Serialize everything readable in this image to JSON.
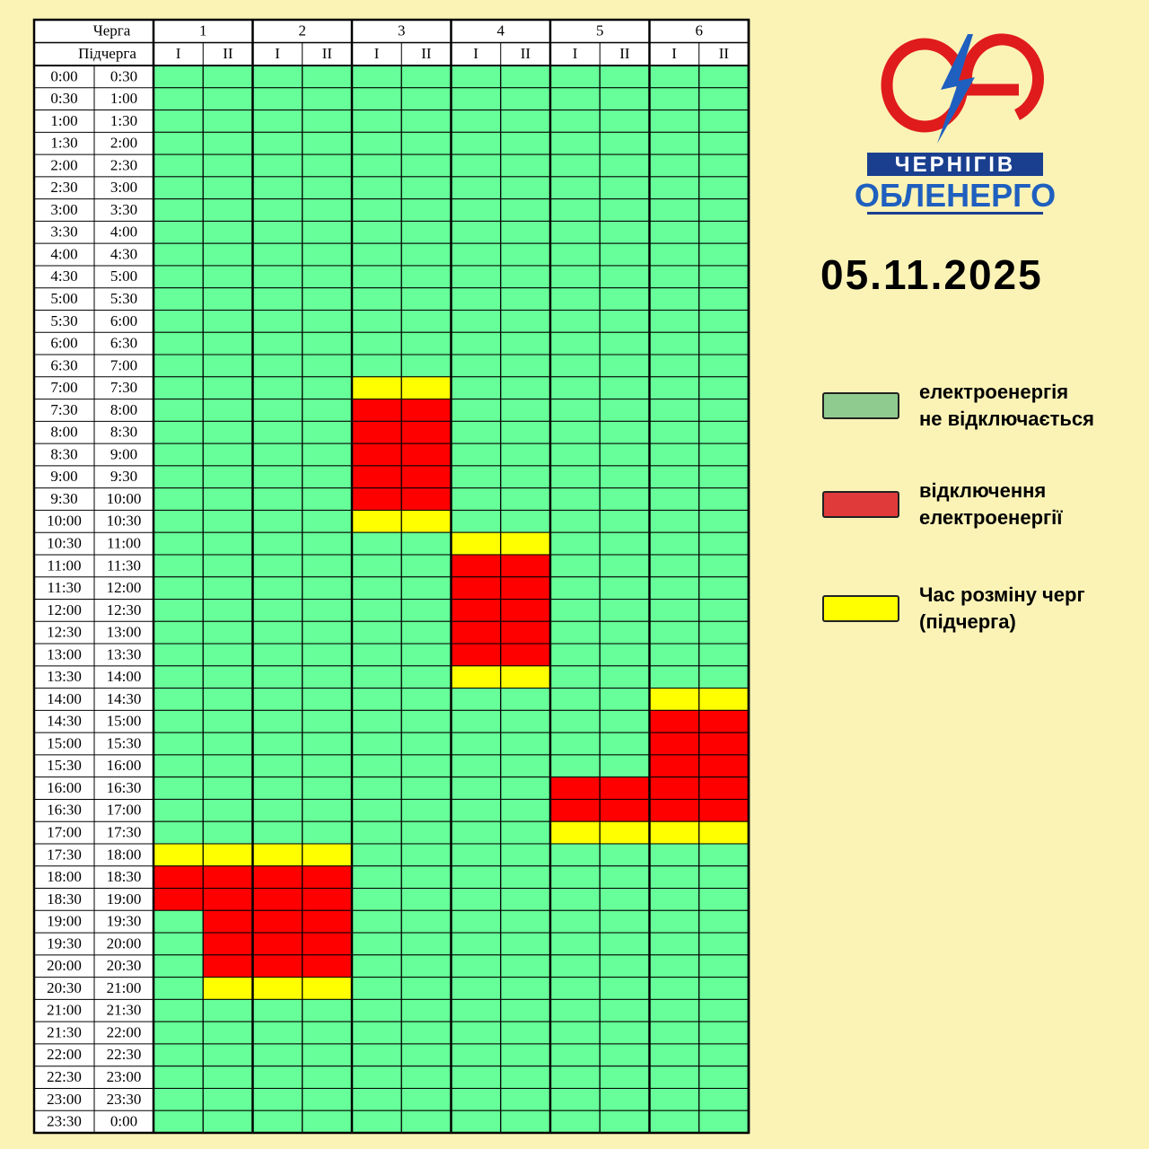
{
  "header": {
    "queue_label": "Черга",
    "subqueue_label": "Підчерга",
    "queues": [
      "1",
      "2",
      "3",
      "4",
      "5",
      "6"
    ],
    "subqueues": [
      "I",
      "II",
      "I",
      "II",
      "I",
      "II",
      "I",
      "II",
      "I",
      "II",
      "I",
      "II"
    ]
  },
  "rows": [
    {
      "from": "0:00",
      "to": "0:30",
      "cells": [
        0,
        0,
        0,
        0,
        0,
        0,
        0,
        0,
        0,
        0,
        0,
        0
      ]
    },
    {
      "from": "0:30",
      "to": "1:00",
      "cells": [
        0,
        0,
        0,
        0,
        0,
        0,
        0,
        0,
        0,
        0,
        0,
        0
      ]
    },
    {
      "from": "1:00",
      "to": "1:30",
      "cells": [
        0,
        0,
        0,
        0,
        0,
        0,
        0,
        0,
        0,
        0,
        0,
        0
      ]
    },
    {
      "from": "1:30",
      "to": "2:00",
      "cells": [
        0,
        0,
        0,
        0,
        0,
        0,
        0,
        0,
        0,
        0,
        0,
        0
      ]
    },
    {
      "from": "2:00",
      "to": "2:30",
      "cells": [
        0,
        0,
        0,
        0,
        0,
        0,
        0,
        0,
        0,
        0,
        0,
        0
      ]
    },
    {
      "from": "2:30",
      "to": "3:00",
      "cells": [
        0,
        0,
        0,
        0,
        0,
        0,
        0,
        0,
        0,
        0,
        0,
        0
      ]
    },
    {
      "from": "3:00",
      "to": "3:30",
      "cells": [
        0,
        0,
        0,
        0,
        0,
        0,
        0,
        0,
        0,
        0,
        0,
        0
      ]
    },
    {
      "from": "3:30",
      "to": "4:00",
      "cells": [
        0,
        0,
        0,
        0,
        0,
        0,
        0,
        0,
        0,
        0,
        0,
        0
      ]
    },
    {
      "from": "4:00",
      "to": "4:30",
      "cells": [
        0,
        0,
        0,
        0,
        0,
        0,
        0,
        0,
        0,
        0,
        0,
        0
      ]
    },
    {
      "from": "4:30",
      "to": "5:00",
      "cells": [
        0,
        0,
        0,
        0,
        0,
        0,
        0,
        0,
        0,
        0,
        0,
        0
      ]
    },
    {
      "from": "5:00",
      "to": "5:30",
      "cells": [
        0,
        0,
        0,
        0,
        0,
        0,
        0,
        0,
        0,
        0,
        0,
        0
      ]
    },
    {
      "from": "5:30",
      "to": "6:00",
      "cells": [
        0,
        0,
        0,
        0,
        0,
        0,
        0,
        0,
        0,
        0,
        0,
        0
      ]
    },
    {
      "from": "6:00",
      "to": "6:30",
      "cells": [
        0,
        0,
        0,
        0,
        0,
        0,
        0,
        0,
        0,
        0,
        0,
        0
      ]
    },
    {
      "from": "6:30",
      "to": "7:00",
      "cells": [
        0,
        0,
        0,
        0,
        0,
        0,
        0,
        0,
        0,
        0,
        0,
        0
      ]
    },
    {
      "from": "7:00",
      "to": "7:30",
      "cells": [
        0,
        0,
        0,
        0,
        2,
        2,
        0,
        0,
        0,
        0,
        0,
        0
      ]
    },
    {
      "from": "7:30",
      "to": "8:00",
      "cells": [
        0,
        0,
        0,
        0,
        1,
        1,
        0,
        0,
        0,
        0,
        0,
        0
      ]
    },
    {
      "from": "8:00",
      "to": "8:30",
      "cells": [
        0,
        0,
        0,
        0,
        1,
        1,
        0,
        0,
        0,
        0,
        0,
        0
      ]
    },
    {
      "from": "8:30",
      "to": "9:00",
      "cells": [
        0,
        0,
        0,
        0,
        1,
        1,
        0,
        0,
        0,
        0,
        0,
        0
      ]
    },
    {
      "from": "9:00",
      "to": "9:30",
      "cells": [
        0,
        0,
        0,
        0,
        1,
        1,
        0,
        0,
        0,
        0,
        0,
        0
      ]
    },
    {
      "from": "9:30",
      "to": "10:00",
      "cells": [
        0,
        0,
        0,
        0,
        1,
        1,
        0,
        0,
        0,
        0,
        0,
        0
      ]
    },
    {
      "from": "10:00",
      "to": "10:30",
      "cells": [
        0,
        0,
        0,
        0,
        2,
        2,
        0,
        0,
        0,
        0,
        0,
        0
      ]
    },
    {
      "from": "10:30",
      "to": "11:00",
      "cells": [
        0,
        0,
        0,
        0,
        0,
        0,
        2,
        2,
        0,
        0,
        0,
        0
      ]
    },
    {
      "from": "11:00",
      "to": "11:30",
      "cells": [
        0,
        0,
        0,
        0,
        0,
        0,
        1,
        1,
        0,
        0,
        0,
        0
      ]
    },
    {
      "from": "11:30",
      "to": "12:00",
      "cells": [
        0,
        0,
        0,
        0,
        0,
        0,
        1,
        1,
        0,
        0,
        0,
        0
      ]
    },
    {
      "from": "12:00",
      "to": "12:30",
      "cells": [
        0,
        0,
        0,
        0,
        0,
        0,
        1,
        1,
        0,
        0,
        0,
        0
      ]
    },
    {
      "from": "12:30",
      "to": "13:00",
      "cells": [
        0,
        0,
        0,
        0,
        0,
        0,
        1,
        1,
        0,
        0,
        0,
        0
      ]
    },
    {
      "from": "13:00",
      "to": "13:30",
      "cells": [
        0,
        0,
        0,
        0,
        0,
        0,
        1,
        1,
        0,
        0,
        0,
        0
      ]
    },
    {
      "from": "13:30",
      "to": "14:00",
      "cells": [
        0,
        0,
        0,
        0,
        0,
        0,
        2,
        2,
        0,
        0,
        0,
        0
      ]
    },
    {
      "from": "14:00",
      "to": "14:30",
      "cells": [
        0,
        0,
        0,
        0,
        0,
        0,
        0,
        0,
        0,
        0,
        2,
        2
      ]
    },
    {
      "from": "14:30",
      "to": "15:00",
      "cells": [
        0,
        0,
        0,
        0,
        0,
        0,
        0,
        0,
        0,
        0,
        1,
        1
      ]
    },
    {
      "from": "15:00",
      "to": "15:30",
      "cells": [
        0,
        0,
        0,
        0,
        0,
        0,
        0,
        0,
        0,
        0,
        1,
        1
      ]
    },
    {
      "from": "15:30",
      "to": "16:00",
      "cells": [
        0,
        0,
        0,
        0,
        0,
        0,
        0,
        0,
        0,
        0,
        1,
        1
      ]
    },
    {
      "from": "16:00",
      "to": "16:30",
      "cells": [
        0,
        0,
        0,
        0,
        0,
        0,
        0,
        0,
        1,
        1,
        1,
        1
      ]
    },
    {
      "from": "16:30",
      "to": "17:00",
      "cells": [
        0,
        0,
        0,
        0,
        0,
        0,
        0,
        0,
        1,
        1,
        1,
        1
      ]
    },
    {
      "from": "17:00",
      "to": "17:30",
      "cells": [
        0,
        0,
        0,
        0,
        0,
        0,
        0,
        0,
        2,
        2,
        2,
        2
      ]
    },
    {
      "from": "17:30",
      "to": "18:00",
      "cells": [
        2,
        2,
        2,
        2,
        0,
        0,
        0,
        0,
        0,
        0,
        0,
        0
      ]
    },
    {
      "from": "18:00",
      "to": "18:30",
      "cells": [
        1,
        1,
        1,
        1,
        0,
        0,
        0,
        0,
        0,
        0,
        0,
        0
      ]
    },
    {
      "from": "18:30",
      "to": "19:00",
      "cells": [
        1,
        1,
        1,
        1,
        0,
        0,
        0,
        0,
        0,
        0,
        0,
        0
      ]
    },
    {
      "from": "19:00",
      "to": "19:30",
      "cells": [
        0,
        1,
        1,
        1,
        0,
        0,
        0,
        0,
        0,
        0,
        0,
        0
      ]
    },
    {
      "from": "19:30",
      "to": "20:00",
      "cells": [
        0,
        1,
        1,
        1,
        0,
        0,
        0,
        0,
        0,
        0,
        0,
        0
      ]
    },
    {
      "from": "20:00",
      "to": "20:30",
      "cells": [
        0,
        1,
        1,
        1,
        0,
        0,
        0,
        0,
        0,
        0,
        0,
        0
      ]
    },
    {
      "from": "20:30",
      "to": "21:00",
      "cells": [
        0,
        2,
        2,
        2,
        0,
        0,
        0,
        0,
        0,
        0,
        0,
        0
      ]
    },
    {
      "from": "21:00",
      "to": "21:30",
      "cells": [
        0,
        0,
        0,
        0,
        0,
        0,
        0,
        0,
        0,
        0,
        0,
        0
      ]
    },
    {
      "from": "21:30",
      "to": "22:00",
      "cells": [
        0,
        0,
        0,
        0,
        0,
        0,
        0,
        0,
        0,
        0,
        0,
        0
      ]
    },
    {
      "from": "22:00",
      "to": "22:30",
      "cells": [
        0,
        0,
        0,
        0,
        0,
        0,
        0,
        0,
        0,
        0,
        0,
        0
      ]
    },
    {
      "from": "22:30",
      "to": "23:00",
      "cells": [
        0,
        0,
        0,
        0,
        0,
        0,
        0,
        0,
        0,
        0,
        0,
        0
      ]
    },
    {
      "from": "23:00",
      "to": "23:30",
      "cells": [
        0,
        0,
        0,
        0,
        0,
        0,
        0,
        0,
        0,
        0,
        0,
        0
      ]
    },
    {
      "from": "23:30",
      "to": "0:00",
      "cells": [
        0,
        0,
        0,
        0,
        0,
        0,
        0,
        0,
        0,
        0,
        0,
        0
      ]
    }
  ],
  "logo": {
    "line1": "ЧЕРНІГІВ",
    "line2": "ОБЛЕНЕРГО"
  },
  "date": "05.11.2025",
  "legend": [
    {
      "lines": [
        "електроенергія",
        "не відключається"
      ],
      "swatch_color": "#8fcb8f",
      "cell_color": "#66ff99"
    },
    {
      "lines": [
        "відключення",
        "електроенергії"
      ],
      "swatch_color": "#e03a3a",
      "cell_color": "#ff0000"
    },
    {
      "lines": [
        "Час розміну черг",
        " (підчерга)"
      ],
      "swatch_color": "#ffff00",
      "cell_color": "#ffff00"
    }
  ]
}
